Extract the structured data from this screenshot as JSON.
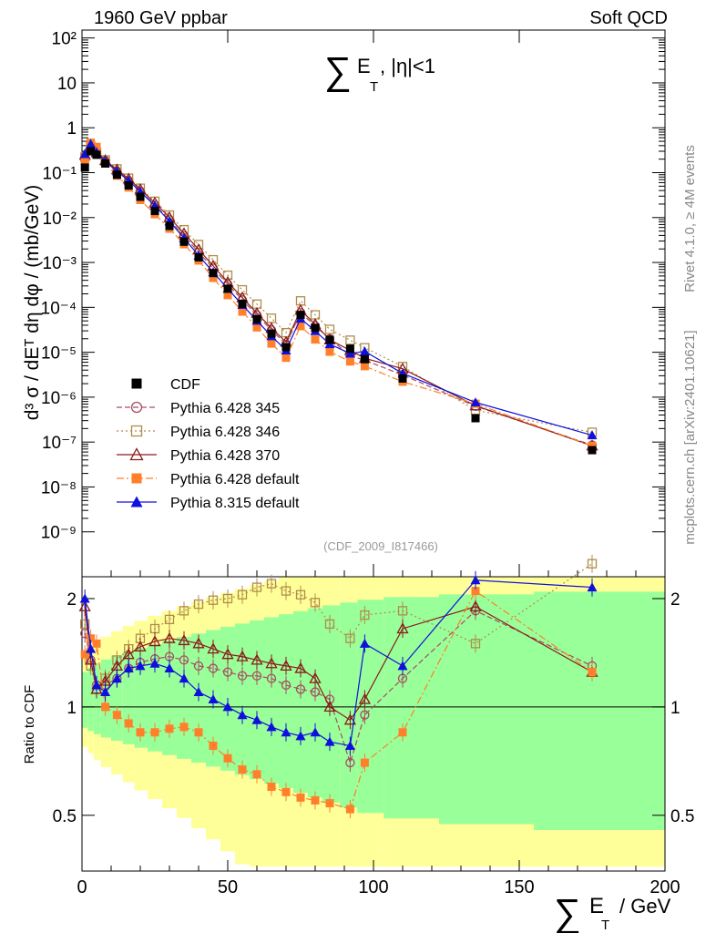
{
  "header": {
    "left": "1960 GeV ppbar",
    "right": "Soft QCD"
  },
  "side": {
    "rivet": "Rivet 4.1.0, ≥ 4M events",
    "mcplots": "mcplots.cern.ch [arXiv:2401.10621]"
  },
  "chart_data": {
    "type": "line",
    "title": "∑ E_T, |η|<1",
    "title_parts": {
      "sum": "∑",
      "e": "E",
      "sub": "T",
      "rest": ", |η|<1"
    },
    "analysis": "(CDF_2009_I817466)",
    "xlabel": "∑ E_T / GeV",
    "xlabel_parts": {
      "sum": "∑",
      "e": "E",
      "sub": "T",
      "rest": "/ GeV"
    },
    "ylabel": "d³ σ / dE_T dη dφ / (mb/GeV)",
    "ylabel_text": "d³ σ / dEᵀ dη dφ / (mb/GeV)",
    "ratio_ylabel": "Ratio to CDF",
    "xlim": [
      0,
      200
    ],
    "ylim_log": [
      1e-10,
      150
    ],
    "ratio_ylim": [
      0.35,
      2.3
    ],
    "x_ticks": [
      "0",
      "50",
      "100",
      "150",
      "200"
    ],
    "x_tick_values": [
      0,
      50,
      100,
      150,
      200
    ],
    "y_ticks": [
      "10⁻⁹",
      "10⁻⁸",
      "10⁻⁷",
      "10⁻⁶",
      "10⁻⁵",
      "10⁻⁴",
      "10⁻³",
      "10⁻²",
      "10⁻¹",
      "1",
      "10",
      "10²"
    ],
    "y_tick_exponents": [
      -9,
      -8,
      -7,
      -6,
      -5,
      -4,
      -3,
      -2,
      -1,
      0,
      1,
      2
    ],
    "ratio_ticks": [
      "0.5",
      "1",
      "2"
    ],
    "ratio_tick_values": [
      0.5,
      1,
      2
    ],
    "legend": [
      {
        "name": "CDF",
        "color": "#000000",
        "marker": "square-filled",
        "dash": "none"
      },
      {
        "name": "Pythia 6.428 345",
        "color": "#a64d62",
        "marker": "circle-open",
        "dash": "6,3"
      },
      {
        "name": "Pythia 6.428 346",
        "color": "#b08c4a",
        "marker": "square-open",
        "dash": "2,3"
      },
      {
        "name": "Pythia 6.428 370",
        "color": "#8b1a1a",
        "marker": "triangle-open",
        "dash": "none"
      },
      {
        "name": "Pythia 6.428 default",
        "color": "#ff7f2a",
        "marker": "square-filled",
        "dash": "8,3,2,3"
      },
      {
        "name": "Pythia 8.315 default",
        "color": "#1010dd",
        "marker": "triangle-filled",
        "dash": "none"
      }
    ],
    "cdf": {
      "x": [
        1,
        3,
        5,
        8,
        12,
        16,
        20,
        25,
        30,
        35,
        40,
        45,
        50,
        55,
        60,
        65,
        70,
        75,
        80,
        85,
        92,
        97,
        110,
        135,
        175
      ],
      "y": [
        0.13,
        0.3,
        0.25,
        0.16,
        0.09,
        0.052,
        0.029,
        0.014,
        0.0065,
        0.0029,
        0.0013,
        0.00058,
        0.00026,
        0.00012,
        5.5e-05,
        2.6e-05,
        1.3e-05,
        6.8e-05,
        3.5e-05,
        1.9e-05,
        1.2e-05,
        7e-06,
        2.6e-06,
        3.4e-07,
        6.6e-08
      ]
    },
    "mc_series": [
      {
        "name": "Pythia 6.428 345",
        "x": [
          1,
          3,
          5,
          8,
          12,
          16,
          20,
          25,
          30,
          35,
          40,
          45,
          50,
          55,
          60,
          65,
          70,
          75,
          80,
          85,
          92,
          97,
          110,
          135,
          175
        ],
        "ratio": [
          1.6,
          1.35,
          1.15,
          1.15,
          1.2,
          1.28,
          1.33,
          1.36,
          1.38,
          1.35,
          1.3,
          1.28,
          1.25,
          1.22,
          1.22,
          1.2,
          1.15,
          1.12,
          1.1,
          1.05,
          0.7,
          0.95,
          1.2,
          1.85,
          1.3
        ]
      },
      {
        "name": "Pythia 6.428 346",
        "x": [
          1,
          3,
          5,
          8,
          12,
          16,
          20,
          25,
          30,
          35,
          40,
          45,
          50,
          55,
          60,
          65,
          70,
          75,
          80,
          85,
          92,
          97,
          110,
          135,
          175
        ],
        "ratio": [
          1.7,
          1.3,
          1.12,
          1.2,
          1.35,
          1.45,
          1.55,
          1.65,
          1.75,
          1.85,
          1.93,
          1.98,
          2.0,
          2.05,
          2.15,
          2.2,
          2.1,
          2.05,
          1.95,
          1.7,
          1.55,
          1.8,
          1.85,
          1.5,
          2.5
        ]
      },
      {
        "name": "Pythia 6.428 370",
        "x": [
          1,
          3,
          5,
          8,
          12,
          16,
          20,
          25,
          30,
          35,
          40,
          45,
          50,
          55,
          60,
          65,
          70,
          75,
          80,
          85,
          92,
          97,
          110,
          135,
          175
        ],
        "ratio": [
          1.9,
          1.35,
          1.12,
          1.18,
          1.3,
          1.4,
          1.47,
          1.52,
          1.55,
          1.53,
          1.5,
          1.45,
          1.4,
          1.38,
          1.35,
          1.32,
          1.3,
          1.28,
          1.2,
          1.0,
          0.92,
          1.05,
          1.65,
          1.9,
          1.25
        ]
      },
      {
        "name": "Pythia 6.428 default",
        "x": [
          1,
          3,
          5,
          8,
          12,
          16,
          20,
          25,
          30,
          35,
          40,
          45,
          50,
          55,
          60,
          65,
          70,
          75,
          80,
          85,
          92,
          97,
          110,
          135,
          175
        ],
        "ratio": [
          1.4,
          1.55,
          1.5,
          1.0,
          0.95,
          0.9,
          0.85,
          0.85,
          0.87,
          0.88,
          0.85,
          0.78,
          0.72,
          0.67,
          0.65,
          0.6,
          0.58,
          0.56,
          0.55,
          0.54,
          0.52,
          0.7,
          0.85,
          2.1,
          1.25
        ]
      },
      {
        "name": "Pythia 8.315 default",
        "x": [
          1,
          3,
          5,
          8,
          12,
          16,
          20,
          25,
          30,
          35,
          40,
          45,
          50,
          55,
          60,
          65,
          70,
          75,
          80,
          85,
          92,
          97,
          110,
          135,
          175
        ],
        "ratio": [
          2.0,
          1.45,
          1.15,
          1.1,
          1.2,
          1.28,
          1.3,
          1.32,
          1.28,
          1.2,
          1.1,
          1.05,
          1.0,
          0.95,
          0.92,
          0.88,
          0.85,
          0.83,
          0.85,
          0.8,
          0.78,
          1.5,
          1.3,
          2.25,
          2.15
        ]
      }
    ],
    "ratio_reference_line": 1
  }
}
